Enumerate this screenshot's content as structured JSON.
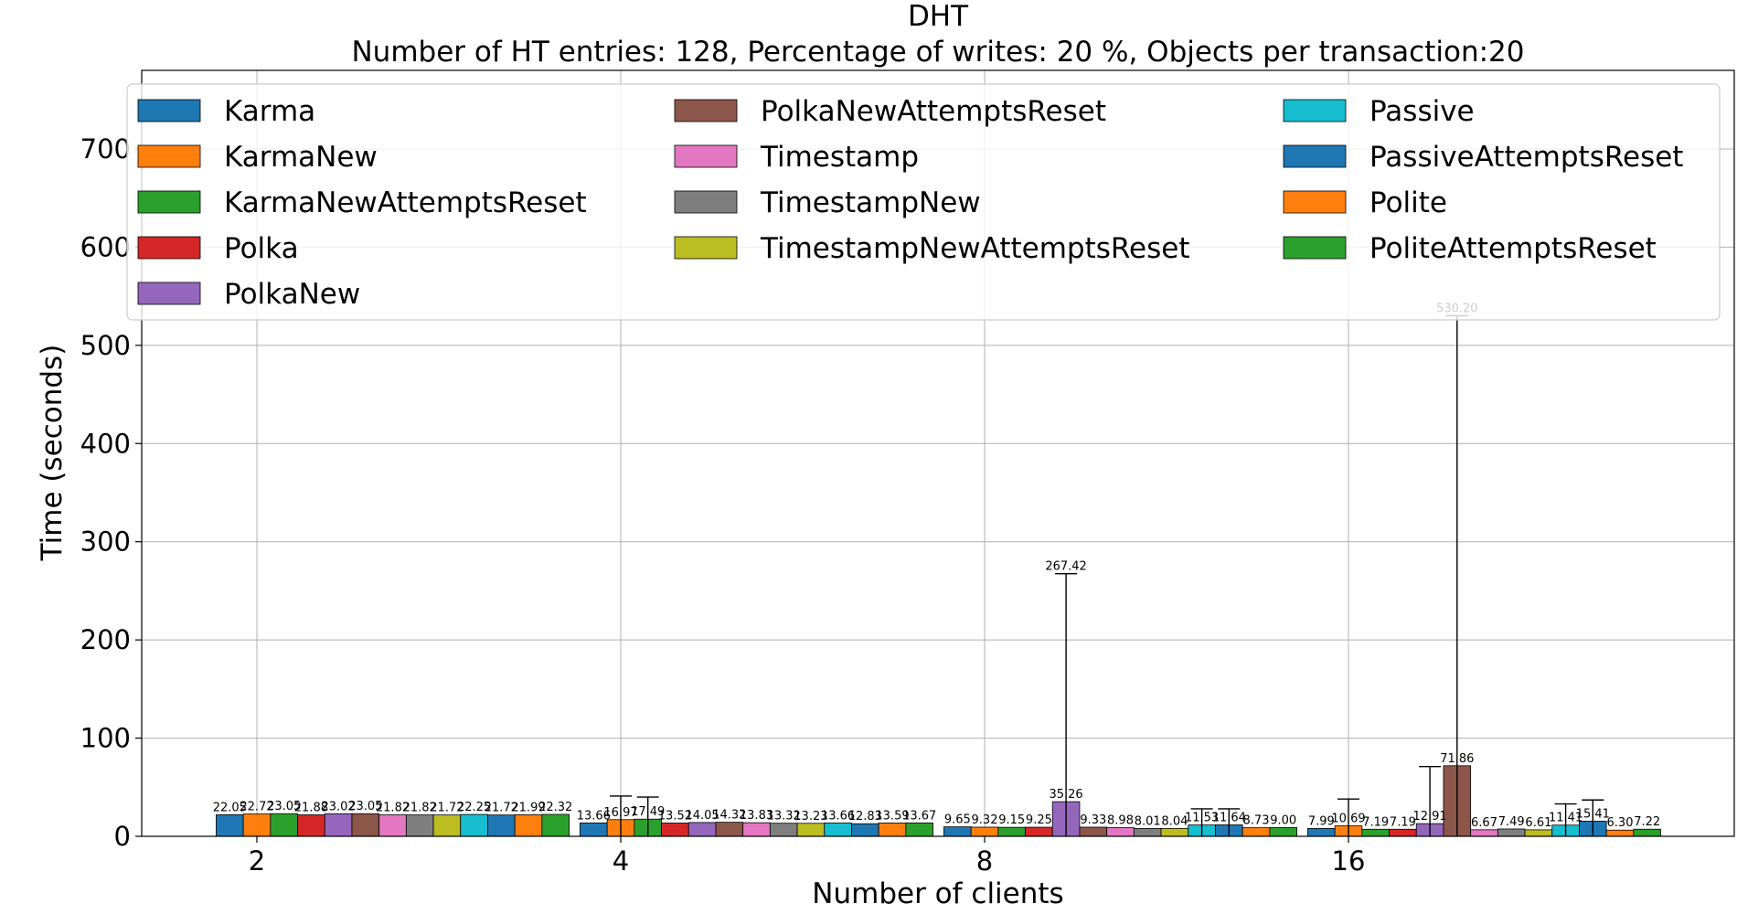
{
  "chart_data": {
    "type": "bar",
    "title": "DHT",
    "subtitle": "Number of HT entries: 128, Percentage of writes: 20 %, Objects per transaction:20",
    "xlabel": "Number of clients",
    "ylabel": "Time (seconds)",
    "categories": [
      "2",
      "4",
      "8",
      "16"
    ],
    "ylim": [
      0,
      780
    ],
    "yticks": [
      0,
      100,
      200,
      300,
      400,
      500,
      600,
      700
    ],
    "grid": true,
    "legend_position": "top",
    "series": [
      {
        "name": "Karma",
        "color": "#1f77b4",
        "values": [
          22.05,
          13.66,
          9.65,
          7.99
        ],
        "labels": [
          "22.05",
          "13.66",
          "9.65",
          "7.99"
        ],
        "err_high": [
          null,
          null,
          null,
          null
        ]
      },
      {
        "name": "KarmaNew",
        "color": "#ff7f0e",
        "values": [
          22.72,
          16.97,
          9.32,
          10.69
        ],
        "labels": [
          "22.72",
          "16.97",
          "9.32",
          "10.69"
        ],
        "err_high": [
          null,
          41,
          null,
          38
        ]
      },
      {
        "name": "KarmaNewAttemptsReset",
        "color": "#2ca02c",
        "values": [
          23.05,
          17.49,
          9.15,
          7.19
        ],
        "labels": [
          "23.05",
          "17.49",
          "9.15",
          "7.19"
        ],
        "err_high": [
          null,
          40,
          null,
          null
        ]
      },
      {
        "name": "Polka",
        "color": "#d62728",
        "values": [
          21.88,
          13.52,
          9.25,
          7.19
        ],
        "labels": [
          "21.88",
          "13.52",
          "9.25",
          "7.19"
        ],
        "err_high": [
          null,
          null,
          null,
          null
        ]
      },
      {
        "name": "PolkaNew",
        "color": "#9467bd",
        "values": [
          23.02,
          14.05,
          35.26,
          12.91
        ],
        "labels": [
          "23.02",
          "14.05",
          "35.26",
          "12.91"
        ],
        "err_high": [
          null,
          null,
          267.42,
          71
        ]
      },
      {
        "name": "PolkaNewAttemptsReset",
        "color": "#8c564b",
        "values": [
          23.05,
          14.32,
          9.33,
          71.86
        ],
        "labels": [
          "23.05",
          "14.32",
          "9.33",
          "71.86"
        ],
        "err_high": [
          null,
          null,
          null,
          530.2
        ]
      },
      {
        "name": "Timestamp",
        "color": "#e377c2",
        "values": [
          21.82,
          13.83,
          8.98,
          6.67
        ],
        "labels": [
          "21.82",
          "13.83",
          "8.98",
          "6.67"
        ],
        "err_high": [
          null,
          null,
          null,
          null
        ]
      },
      {
        "name": "TimestampNew",
        "color": "#7f7f7f",
        "values": [
          21.82,
          13.32,
          8.01,
          7.49
        ],
        "labels": [
          "21.82",
          "13.32",
          "8.01",
          "7.49"
        ],
        "err_high": [
          null,
          null,
          null,
          null
        ]
      },
      {
        "name": "TimestampNewAttemptsReset",
        "color": "#bcbd22",
        "values": [
          21.72,
          13.23,
          8.04,
          6.61
        ],
        "labels": [
          "21.72",
          "13.23",
          "8.04",
          "6.61"
        ],
        "err_high": [
          null,
          null,
          null,
          null
        ]
      },
      {
        "name": "Passive",
        "color": "#17becf",
        "values": [
          22.25,
          13.66,
          11.53,
          11.41
        ],
        "labels": [
          "22.25",
          "13.66",
          "11.53",
          "11.41"
        ],
        "err_high": [
          null,
          null,
          28,
          33
        ]
      },
      {
        "name": "PassiveAttemptsReset",
        "color": "#1f77b4",
        "values": [
          21.72,
          12.83,
          11.64,
          15.41
        ],
        "labels": [
          "21.72",
          "12.83",
          "11.64",
          "15.41"
        ],
        "err_high": [
          null,
          null,
          28,
          37
        ]
      },
      {
        "name": "Polite",
        "color": "#ff7f0e",
        "values": [
          21.99,
          13.59,
          8.73,
          6.3
        ],
        "labels": [
          "21.99",
          "13.59",
          "8.73",
          "6.30"
        ],
        "err_high": [
          null,
          null,
          null,
          null
        ]
      },
      {
        "name": "PoliteAttemptsReset",
        "color": "#2ca02c",
        "values": [
          22.32,
          13.67,
          9.0,
          7.22
        ],
        "labels": [
          "22.32",
          "13.67",
          "9.00",
          "7.22"
        ],
        "err_high": [
          null,
          null,
          null,
          null
        ]
      }
    ]
  }
}
